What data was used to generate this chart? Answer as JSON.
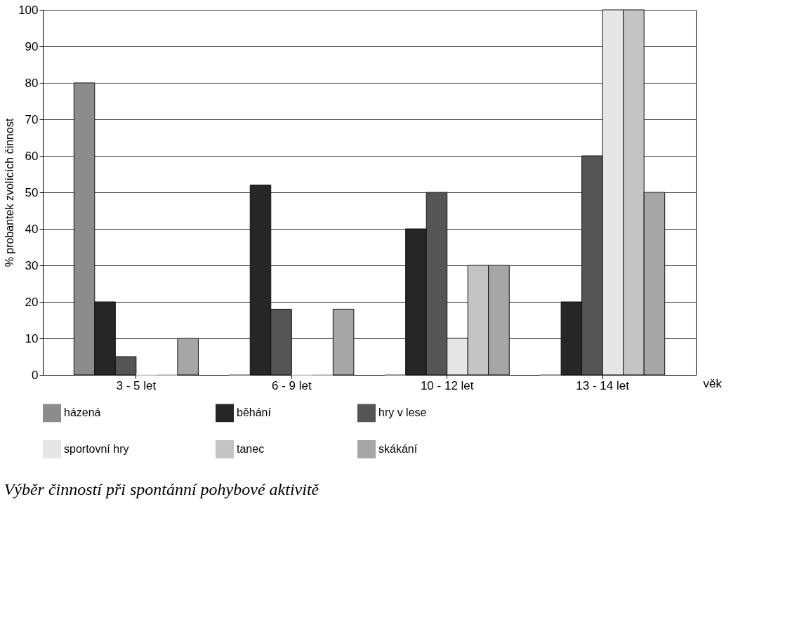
{
  "chart_data": {
    "type": "bar",
    "title": "Výběr činností při spontánní pohybové aktivitě",
    "xlabel": "věk",
    "ylabel": "% probantek zvolících činnost",
    "categories": [
      "3 - 5 let",
      "6 - 9 let",
      "10 - 12 let",
      "13 - 14 let"
    ],
    "series": [
      {
        "name": "házená",
        "color": "#8c8c8c",
        "values": [
          80,
          0,
          0,
          0
        ]
      },
      {
        "name": "běhání",
        "color": "#262626",
        "values": [
          20,
          52,
          40,
          20
        ]
      },
      {
        "name": "hry v lese",
        "color": "#555555",
        "values": [
          5,
          18,
          50,
          60
        ]
      },
      {
        "name": "sportovní hry",
        "color": "#e6e6e6",
        "values": [
          0,
          0,
          10,
          100
        ]
      },
      {
        "name": "tanec",
        "color": "#c4c4c4",
        "values": [
          0,
          0,
          30,
          100
        ]
      },
      {
        "name": "skákání",
        "color": "#a6a6a6",
        "values": [
          10,
          18,
          30,
          50
        ]
      }
    ],
    "ylim": [
      0,
      100
    ],
    "yticks": [
      0,
      10,
      20,
      30,
      40,
      50,
      60,
      70,
      80,
      90,
      100
    ],
    "grid": "y",
    "legend": "bottom"
  }
}
